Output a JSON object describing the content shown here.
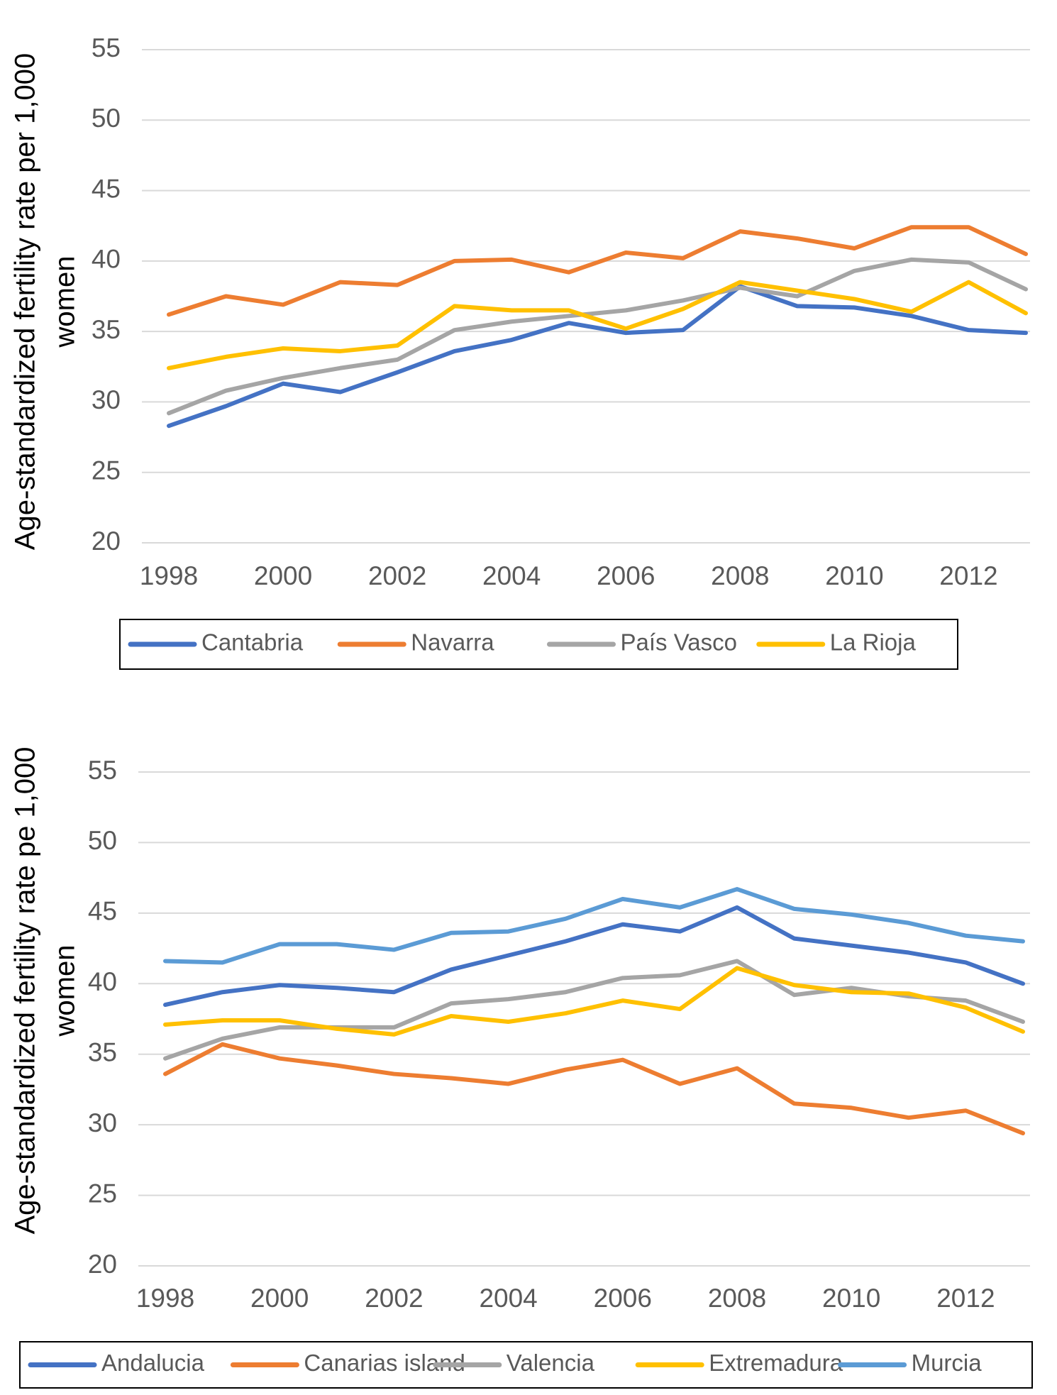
{
  "chart_data": [
    {
      "type": "line",
      "ylabel": [
        "Age-standardized fertility rate per 1,000",
        "women"
      ],
      "x": [
        1998,
        1999,
        2000,
        2001,
        2002,
        2003,
        2004,
        2005,
        2006,
        2007,
        2008,
        2009,
        2010,
        2011,
        2012,
        2013
      ],
      "xlim": [
        1998,
        2013
      ],
      "xticks": [
        1998,
        2000,
        2002,
        2004,
        2006,
        2008,
        2010,
        2012
      ],
      "ylim": [
        20,
        55
      ],
      "yticks": [
        20,
        25,
        30,
        35,
        40,
        45,
        50,
        55
      ],
      "grid": true,
      "legend": "bottom",
      "series": [
        {
          "name": "Cantabria",
          "color": "#4472c4",
          "values": [
            28.3,
            29.7,
            31.3,
            30.7,
            32.1,
            33.6,
            34.4,
            35.6,
            34.9,
            35.1,
            38.2,
            36.8,
            36.7,
            36.1,
            35.1,
            34.9
          ]
        },
        {
          "name": "Navarra",
          "color": "#ed7d31",
          "values": [
            36.2,
            37.5,
            36.9,
            38.5,
            38.3,
            40.0,
            40.1,
            39.2,
            40.6,
            40.2,
            42.1,
            41.6,
            40.9,
            42.4,
            42.4,
            40.5
          ]
        },
        {
          "name": "País Vasco",
          "color": "#a5a5a5",
          "values": [
            29.2,
            30.8,
            31.7,
            32.4,
            33.0,
            35.1,
            35.7,
            36.1,
            36.5,
            37.2,
            38.1,
            37.5,
            39.3,
            40.1,
            39.9,
            38.0
          ]
        },
        {
          "name": "La Rioja",
          "color": "#ffc000",
          "values": [
            32.4,
            33.2,
            33.8,
            33.6,
            34.0,
            36.8,
            36.5,
            36.5,
            35.2,
            36.6,
            38.5,
            37.9,
            37.3,
            36.4,
            38.5,
            36.3
          ]
        }
      ]
    },
    {
      "type": "line",
      "ylabel": [
        "Age-standardized fertility rate pe 1,000",
        "women"
      ],
      "x": [
        1998,
        1999,
        2000,
        2001,
        2002,
        2003,
        2004,
        2005,
        2006,
        2007,
        2008,
        2009,
        2010,
        2011,
        2012,
        2013
      ],
      "xlim": [
        1998,
        2013
      ],
      "xticks": [
        1998,
        2000,
        2002,
        2004,
        2006,
        2008,
        2010,
        2012
      ],
      "ylim": [
        20,
        55
      ],
      "yticks": [
        20,
        25,
        30,
        35,
        40,
        45,
        50,
        55
      ],
      "grid": true,
      "legend": "bottom",
      "series": [
        {
          "name": "Andalucia",
          "color": "#4472c4",
          "values": [
            38.5,
            39.4,
            39.9,
            39.7,
            39.4,
            41.0,
            42.0,
            43.0,
            44.2,
            43.7,
            45.4,
            43.2,
            42.7,
            42.2,
            41.5,
            40.0
          ]
        },
        {
          "name": "Canarias island",
          "color": "#ed7d31",
          "values": [
            33.6,
            35.7,
            34.7,
            34.2,
            33.6,
            33.3,
            32.9,
            33.9,
            34.6,
            32.9,
            34.0,
            31.5,
            31.2,
            30.5,
            31.0,
            29.4
          ]
        },
        {
          "name": "Valencia",
          "color": "#a5a5a5",
          "values": [
            34.7,
            36.1,
            36.9,
            36.9,
            36.9,
            38.6,
            38.9,
            39.4,
            40.4,
            40.6,
            41.6,
            39.2,
            39.7,
            39.1,
            38.8,
            37.3
          ]
        },
        {
          "name": "Extremadura",
          "color": "#ffc000",
          "values": [
            37.1,
            37.4,
            37.4,
            36.8,
            36.4,
            37.7,
            37.3,
            37.9,
            38.8,
            38.2,
            41.1,
            39.9,
            39.4,
            39.3,
            38.3,
            36.6
          ]
        },
        {
          "name": "Murcia",
          "color": "#5b9bd5",
          "values": [
            41.6,
            41.5,
            42.8,
            42.8,
            42.4,
            43.6,
            43.7,
            44.6,
            46.0,
            45.4,
            46.7,
            45.3,
            44.9,
            44.3,
            43.4,
            43.0
          ]
        }
      ]
    }
  ]
}
